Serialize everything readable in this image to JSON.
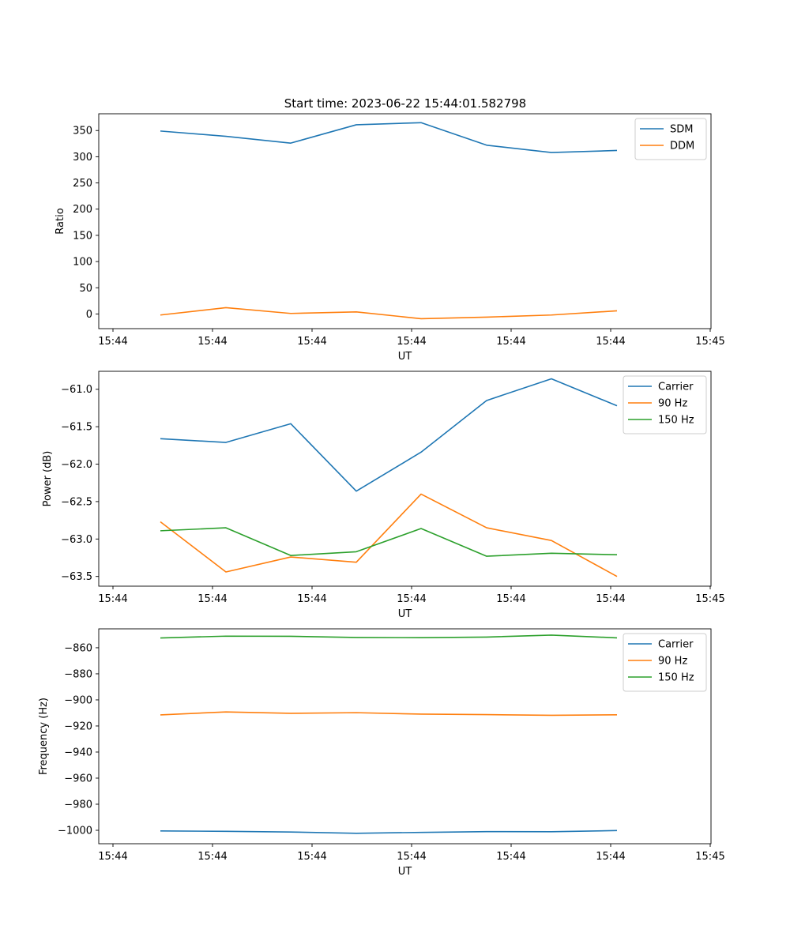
{
  "title": "Start time: 2023-06-22 15:44:01.582798",
  "chart_data": [
    {
      "type": "line",
      "title": "",
      "xlabel": "UT",
      "ylabel": "Ratio",
      "x_tick_labels": [
        "15:44",
        "15:44",
        "15:44",
        "15:44",
        "15:44",
        "15:44",
        "15:45"
      ],
      "yticks": [
        0,
        50,
        100,
        150,
        200,
        250,
        300,
        350
      ],
      "ylim": [
        -28,
        382
      ],
      "grid": false,
      "legend": "top-right",
      "series": [
        {
          "name": "SDM",
          "color": "#1f77b4",
          "values": [
            349,
            339,
            326,
            361,
            365,
            322,
            308,
            312
          ]
        },
        {
          "name": "DDM",
          "color": "#ff7f0e",
          "values": [
            -2,
            12,
            1,
            4,
            -9,
            -6,
            -2,
            6
          ]
        }
      ]
    },
    {
      "type": "line",
      "title": "",
      "xlabel": "UT",
      "ylabel": "Power (dB)",
      "x_tick_labels": [
        "15:44",
        "15:44",
        "15:44",
        "15:44",
        "15:44",
        "15:44",
        "15:45"
      ],
      "yticks": [
        -63.5,
        -63.0,
        -62.5,
        -62.0,
        -61.5,
        -61.0
      ],
      "ytick_labels": [
        "−63.5",
        "−63.0",
        "−62.5",
        "−62.0",
        "−61.5",
        "−61.0"
      ],
      "ylim": [
        -63.63,
        -60.76
      ],
      "grid": false,
      "legend": "top-right",
      "series": [
        {
          "name": "Carrier",
          "color": "#1f77b4",
          "values": [
            -61.66,
            -61.71,
            -61.46,
            -62.36,
            -61.84,
            -61.15,
            -60.86,
            -61.22
          ]
        },
        {
          "name": "90 Hz",
          "color": "#ff7f0e",
          "values": [
            -62.77,
            -63.44,
            -63.24,
            -63.31,
            -62.4,
            -62.85,
            -63.02,
            -63.5
          ]
        },
        {
          "name": "150 Hz",
          "color": "#2ca02c",
          "values": [
            -62.89,
            -62.85,
            -63.22,
            -63.17,
            -62.86,
            -63.23,
            -63.19,
            -63.21
          ]
        }
      ]
    },
    {
      "type": "line",
      "title": "",
      "xlabel": "UT",
      "ylabel": "Frequency (Hz)",
      "x_tick_labels": [
        "15:44",
        "15:44",
        "15:44",
        "15:44",
        "15:44",
        "15:44",
        "15:45"
      ],
      "yticks": [
        -1000,
        -980,
        -960,
        -940,
        -920,
        -900,
        -880,
        -860
      ],
      "ytick_labels": [
        "−1000",
        "−980",
        "−960",
        "−940",
        "−920",
        "−900",
        "−880",
        "−860"
      ],
      "ylim": [
        -1010.3,
        -845.5
      ],
      "grid": false,
      "legend": "top-right",
      "series": [
        {
          "name": "Carrier",
          "color": "#1f77b4",
          "values": [
            -1000.5,
            -1000.8,
            -1001.3,
            -1002.3,
            -1001.6,
            -1001.0,
            -1001.1,
            -1000.2
          ]
        },
        {
          "name": "90 Hz",
          "color": "#ff7f0e",
          "values": [
            -911.5,
            -909.2,
            -910.3,
            -909.8,
            -910.9,
            -911.3,
            -911.8,
            -911.4
          ]
        },
        {
          "name": "150 Hz",
          "color": "#2ca02c",
          "values": [
            -852.5,
            -851.1,
            -851.2,
            -852.1,
            -852.3,
            -851.8,
            -850.3,
            -852.4
          ]
        }
      ]
    }
  ]
}
